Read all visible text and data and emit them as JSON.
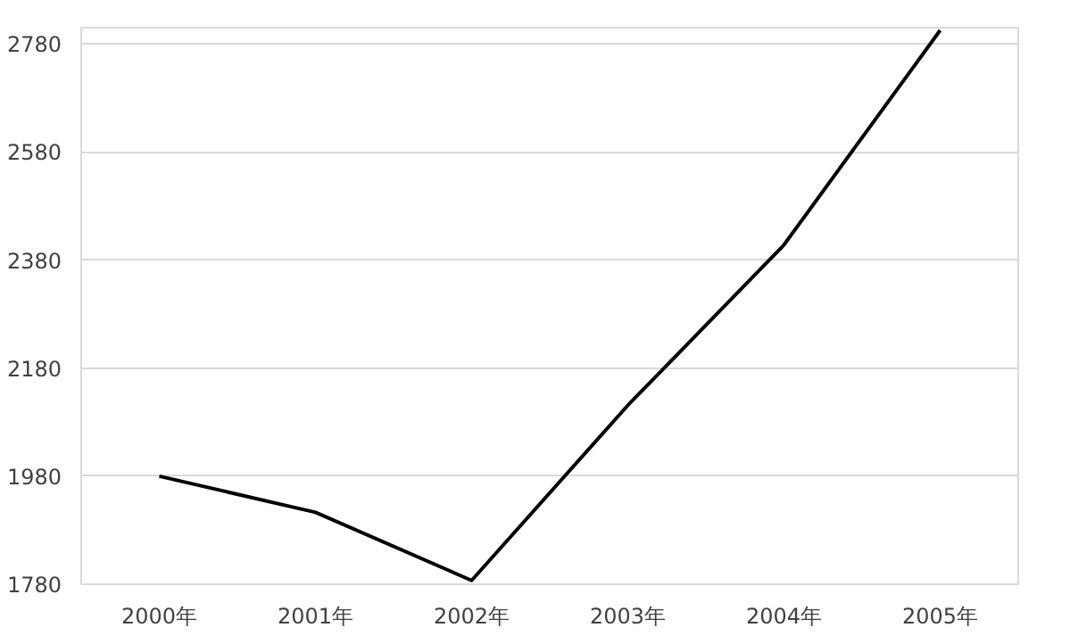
{
  "chart_data": {
    "type": "line",
    "categories": [
      "2000年",
      "2001年",
      "2002年",
      "2003年",
      "2004年",
      "2005年"
    ],
    "series": [
      {
        "color": "#000000",
        "values": [
          1980,
          1913,
          1787,
          2111,
          2408,
          2805
        ]
      }
    ],
    "ylim": [
      1780,
      2810
    ],
    "yticks": [
      1780,
      1980,
      2180,
      2380,
      2580,
      2780
    ],
    "grid": "y",
    "marker": "none",
    "line_style": "solid"
  }
}
